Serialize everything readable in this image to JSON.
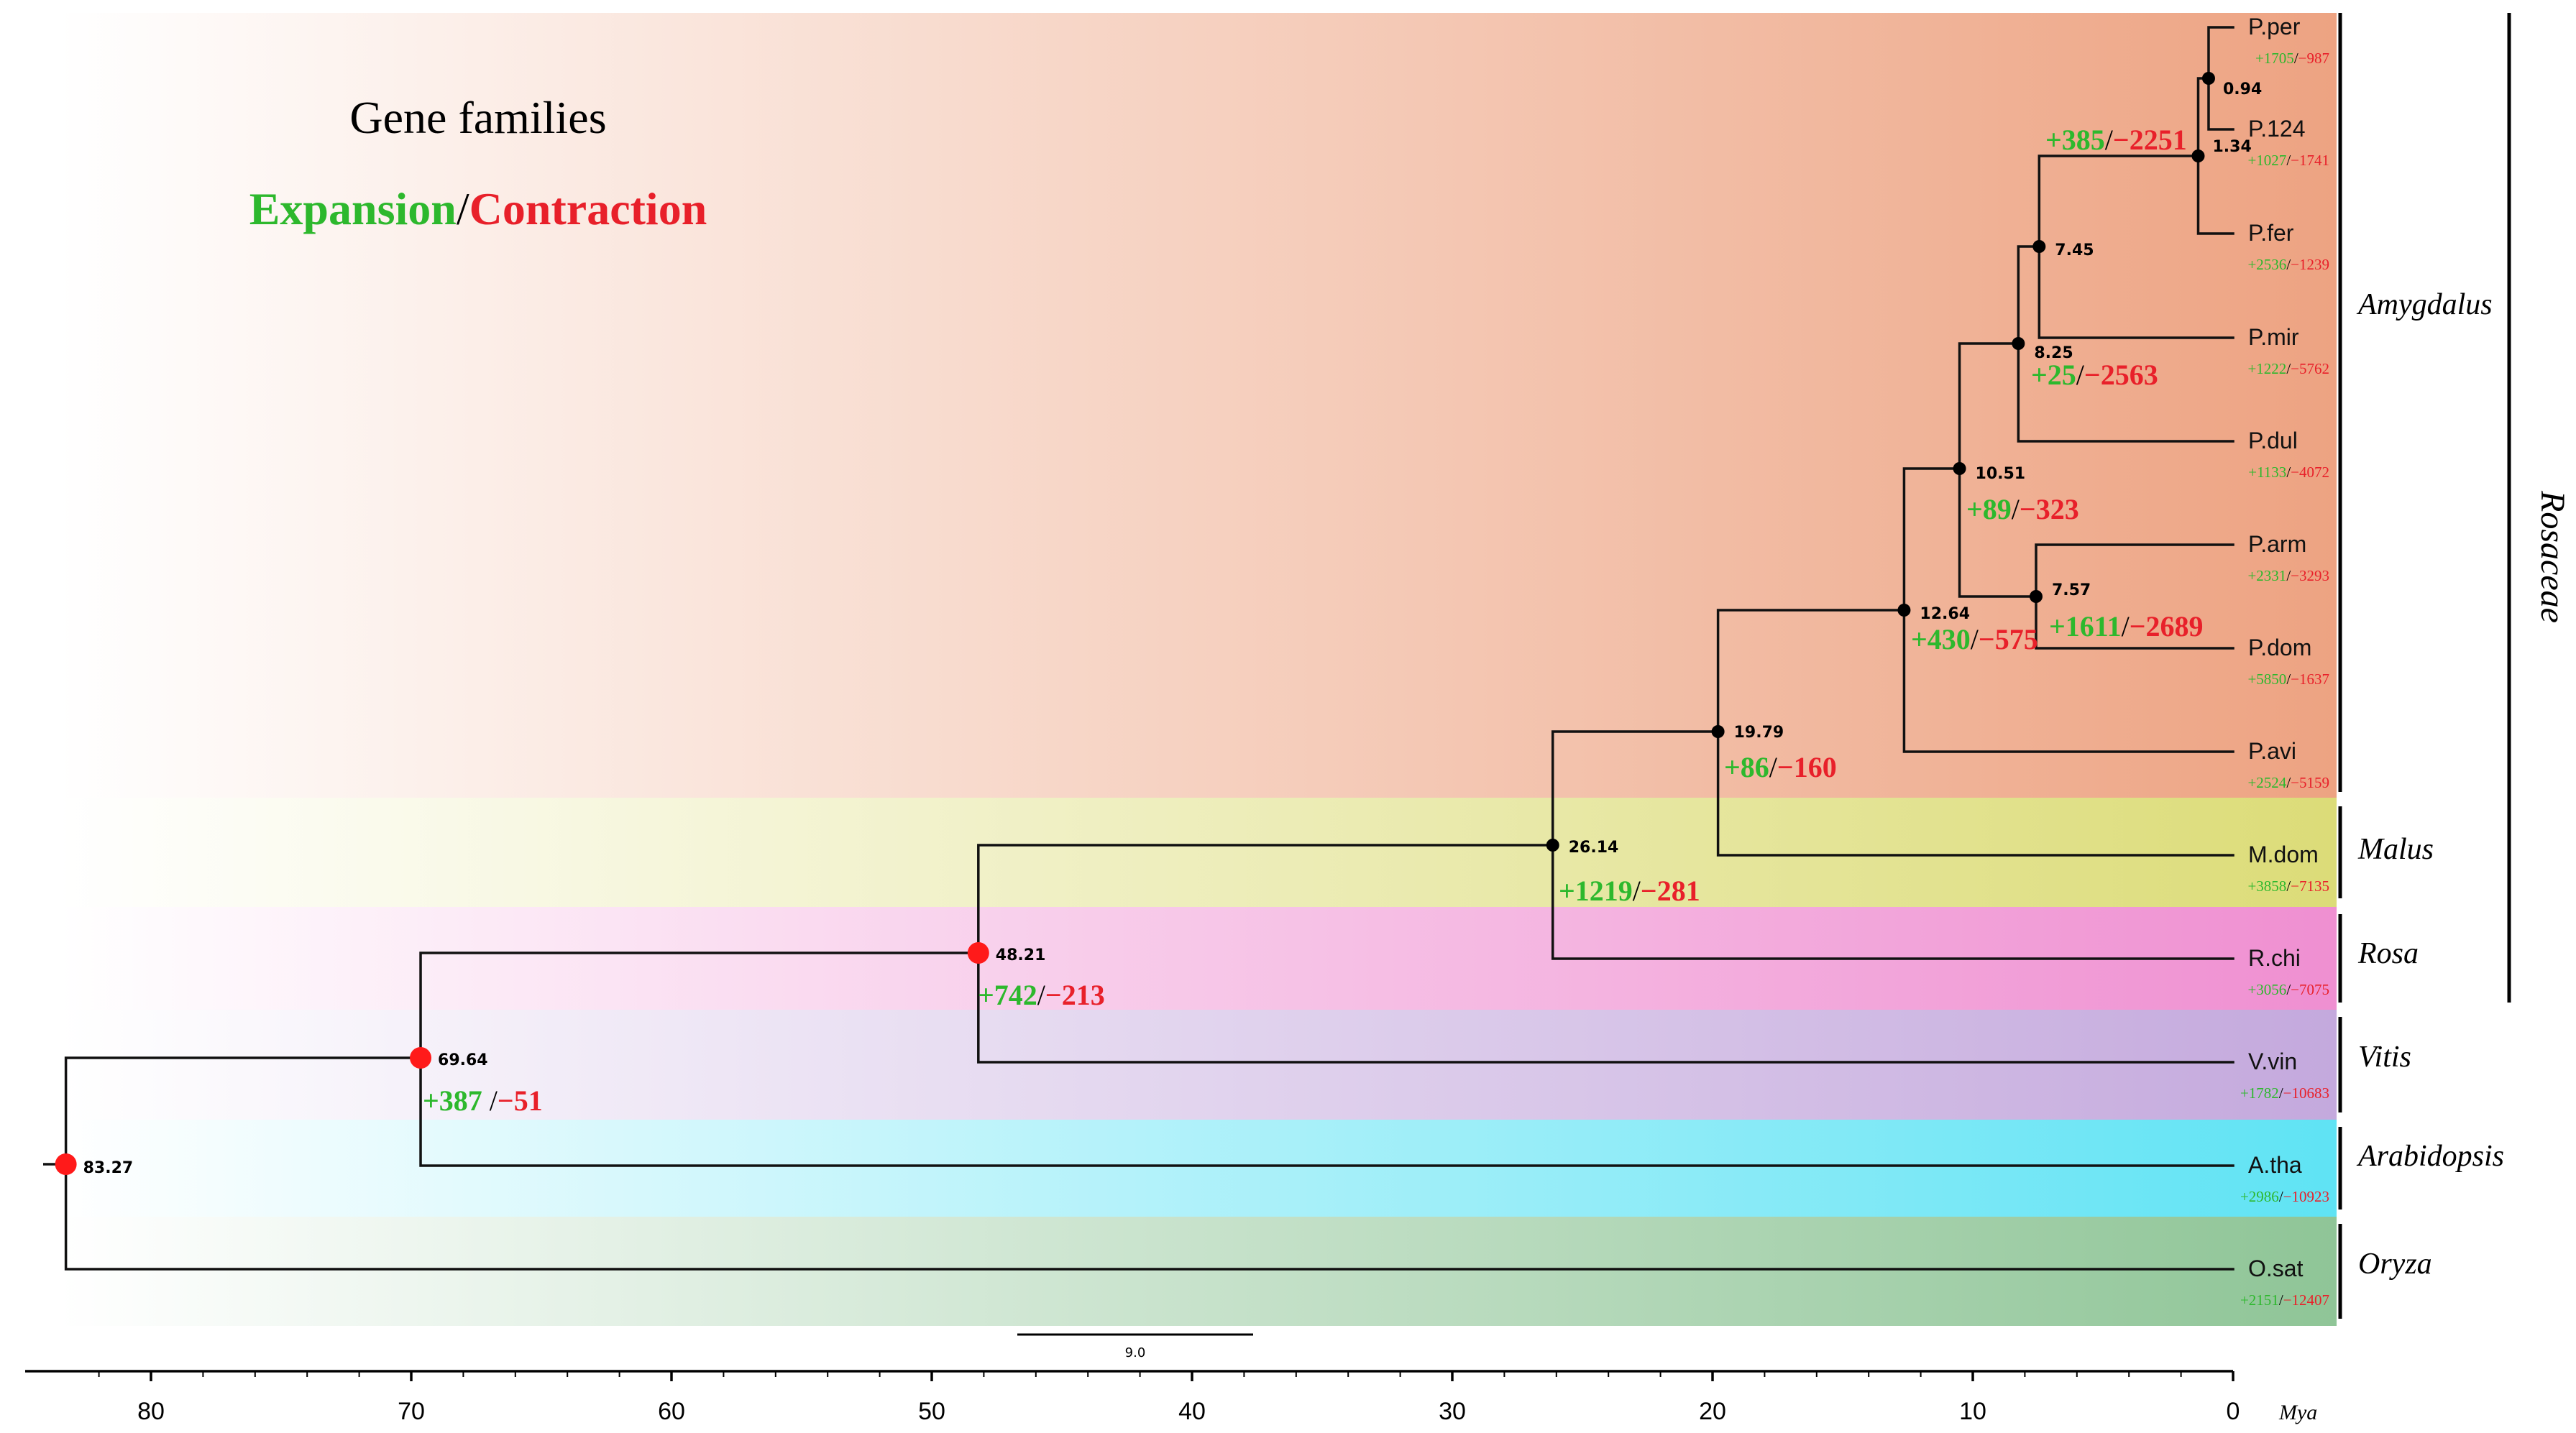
{
  "legend": {
    "title": "Gene families",
    "expansion_label": "Expansion",
    "separator": "/",
    "contraction_label": "Contraction"
  },
  "colors": {
    "expansion": "#2db82d",
    "contraction": "#e8202a",
    "branch": "#111111",
    "node_black": "#000000",
    "node_red": "#ff1a1a",
    "band_rosaceae": "#eda382",
    "band_malus": "#dcdc78",
    "band_rosa": "#ef8fd1",
    "band_vitis": "#c4a9dd",
    "band_arabidopsis": "#5fe3f4",
    "band_oryza": "#8fc597"
  },
  "axis": {
    "unit": "Mya",
    "ticks": [
      "80",
      "70",
      "60",
      "50",
      "40",
      "30",
      "20",
      "10",
      "0"
    ],
    "scale_bar_label": "9.0"
  },
  "nodes": [
    {
      "id": "n0.94",
      "label": "0.94",
      "age": 0.94,
      "type": "black"
    },
    {
      "id": "n1.34",
      "label": "1.34",
      "age": 1.34,
      "type": "black"
    },
    {
      "id": "n7.45",
      "label": "7.45",
      "age": 7.45,
      "type": "black"
    },
    {
      "id": "n8.25",
      "label": "8.25",
      "age": 8.25,
      "type": "black"
    },
    {
      "id": "n7.57",
      "label": "7.57",
      "age": 7.57,
      "type": "black"
    },
    {
      "id": "n10.51",
      "label": "10.51",
      "age": 10.51,
      "type": "black"
    },
    {
      "id": "n12.64",
      "label": "12.64",
      "age": 12.64,
      "type": "black"
    },
    {
      "id": "n19.79",
      "label": "19.79",
      "age": 19.79,
      "type": "black"
    },
    {
      "id": "n26.14",
      "label": "26.14",
      "age": 26.14,
      "type": "black"
    },
    {
      "id": "n48.21",
      "label": "48.21",
      "age": 48.21,
      "type": "red"
    },
    {
      "id": "n69.64",
      "label": "69.64",
      "age": 69.64,
      "type": "red"
    },
    {
      "id": "n83.27",
      "label": "83.27",
      "age": 83.27,
      "type": "red"
    }
  ],
  "branch_changes": [
    {
      "node": "n1.34",
      "expansion": "+385",
      "contraction": "−2251"
    },
    {
      "node": "n8.25",
      "expansion": "+25",
      "contraction": "−2563"
    },
    {
      "node": "n10.51",
      "expansion": "+89",
      "contraction": "−323"
    },
    {
      "node": "n7.57",
      "expansion": "+1611",
      "contraction": "−2689"
    },
    {
      "node": "n12.64",
      "expansion": "+430",
      "contraction": "−575"
    },
    {
      "node": "n19.79",
      "expansion": "+86",
      "contraction": "−160"
    },
    {
      "node": "n26.14",
      "expansion": "+1219",
      "contraction": "−281"
    },
    {
      "node": "n48.21",
      "expansion": "+742",
      "contraction": "−213"
    },
    {
      "node": "n69.64",
      "expansion": "+387 ",
      "contraction": "−51"
    }
  ],
  "tips": [
    {
      "name": "P.per",
      "expansion": "+1705",
      "contraction": "−987"
    },
    {
      "name": "P.124",
      "expansion": "+1027",
      "contraction": "−1741"
    },
    {
      "name": "P.fer",
      "expansion": "+2536",
      "contraction": "−1239"
    },
    {
      "name": "P.mir",
      "expansion": "+1222",
      "contraction": "−5762"
    },
    {
      "name": "P.dul",
      "expansion": "+1133",
      "contraction": "−4072"
    },
    {
      "name": "P.arm",
      "expansion": "+2331",
      "contraction": "−3293"
    },
    {
      "name": "P.dom",
      "expansion": "+5850",
      "contraction": "−1637"
    },
    {
      "name": "P.avi",
      "expansion": "+2524",
      "contraction": "−5159"
    },
    {
      "name": "M.dom",
      "expansion": "+3858",
      "contraction": "−7135"
    },
    {
      "name": "R.chi",
      "expansion": "+3056",
      "contraction": "−7075"
    },
    {
      "name": "V.vin",
      "expansion": "+1782",
      "contraction": "−10683"
    },
    {
      "name": "A.tha",
      "expansion": "+2986",
      "contraction": "−10923"
    },
    {
      "name": "O.sat",
      "expansion": "+2151",
      "contraction": "−12407"
    }
  ],
  "clades": [
    {
      "name": "Amygdalus"
    },
    {
      "name": "Malus"
    },
    {
      "name": "Rosa"
    },
    {
      "name": "Vitis"
    },
    {
      "name": "Arabidopsis"
    },
    {
      "name": "Oryza"
    }
  ],
  "family": {
    "name": "Rosaceae"
  }
}
